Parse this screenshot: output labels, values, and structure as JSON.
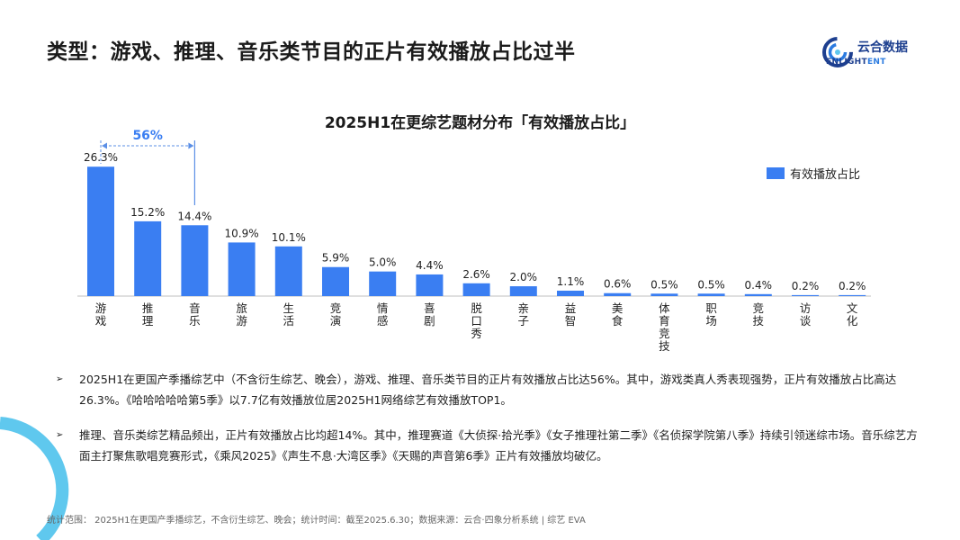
{
  "page_title": "类型：游戏、推理、音乐类节目的正片有效播放占比过半",
  "logo": {
    "name": "云合数据",
    "sub_a": "ENLIGHT",
    "sub_b": "ENT"
  },
  "colors": {
    "bar": "#3a7ef2",
    "accent_text": "#3a7ef2",
    "bracket": "#5b8fe6",
    "logo_blue": "#1d3f8f"
  },
  "icons": {
    "bullet": "arrow-bullet-icon",
    "logo": "enlightent-logo-icon"
  },
  "chart_data": {
    "type": "bar",
    "title": "2025H1在更综艺题材分布「有效播放占比」",
    "categories": [
      "游戏",
      "推理",
      "音乐",
      "旅游",
      "生活",
      "竞演",
      "情感",
      "喜剧",
      "脱口秀",
      "亲子",
      "益智",
      "美食",
      "体育竞技",
      "职场",
      "竞技",
      "访谈",
      "文化"
    ],
    "series": [
      {
        "name": "有效播放占比",
        "values": [
          26.3,
          15.2,
          14.4,
          10.9,
          10.1,
          5.9,
          5.0,
          4.4,
          2.6,
          2.0,
          1.1,
          0.6,
          0.5,
          0.5,
          0.4,
          0.2,
          0.2
        ]
      }
    ],
    "data_labels": [
      "26.3%",
      "15.2%",
      "14.4%",
      "10.9%",
      "10.1%",
      "5.9%",
      "5.0%",
      "4.4%",
      "2.6%",
      "2.0%",
      "1.1%",
      "0.6%",
      "0.5%",
      "0.5%",
      "0.4%",
      "0.2%",
      "0.2%"
    ],
    "legend": {
      "position": "top-right",
      "entries": [
        "有效播放占比"
      ]
    },
    "annotation": {
      "text": "56%",
      "span": [
        "游戏",
        "音乐"
      ]
    },
    "ylim": [
      0,
      30
    ],
    "grid": false
  },
  "bullets": [
    "2025H1在更国产季播综艺中（不含衍生综艺、晚会），游戏、推理、音乐类节目的正片有效播放占比达56%。其中，游戏类真人秀表现强势，正片有效播放占比高达26.3%。《哈哈哈哈哈第5季》以7.7亿有效播放位居2025H1网络综艺有效播放TOP1。",
    "推理、音乐类综艺精品频出，正片有效播放占比均超14%。其中，推理赛道《大侦探·拾光季》《女子推理社第二季》《名侦探学院第八季》持续引领迷综市场。音乐综艺方面主打聚焦歌唱竞赛形式，《乘风2025》《声生不息·大湾区季》《天赐的声音第6季》正片有效播放均破亿。"
  ],
  "footnote": "统计范围： 2025H1在更国产季播综艺，不含衍生综艺、晚会；统计时间：截至2025.6.30；数据来源：云合·四象分析系统 | 综艺 EVA"
}
